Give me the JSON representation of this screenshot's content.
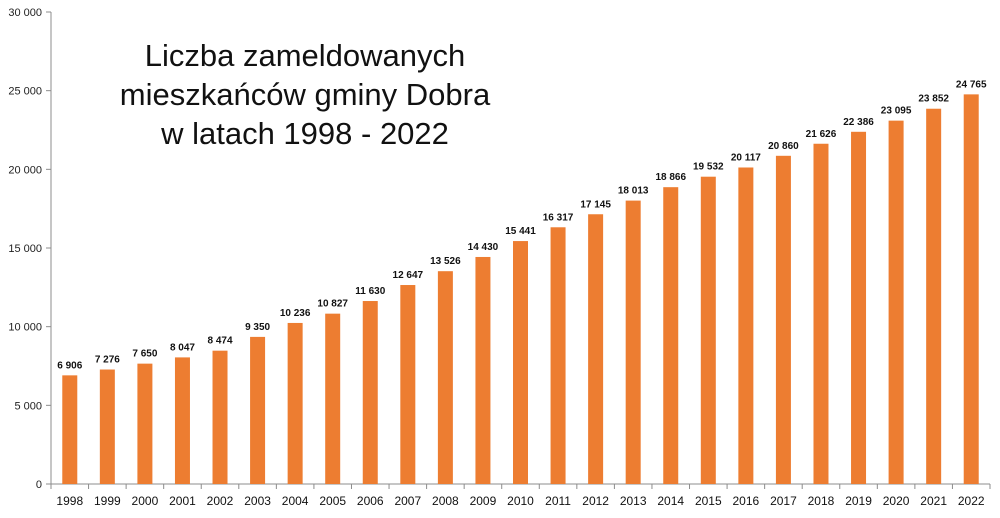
{
  "chart_data": {
    "type": "bar",
    "title_lines": [
      "Liczba zameldowanych",
      "mieszkańców gminy Dobra",
      "w latach 1998 - 2022"
    ],
    "categories": [
      "1998",
      "1999",
      "2000",
      "2001",
      "2002",
      "2003",
      "2004",
      "2005",
      "2006",
      "2007",
      "2008",
      "2009",
      "2010",
      "2011",
      "2012",
      "2013",
      "2014",
      "2015",
      "2016",
      "2017",
      "2018",
      "2019",
      "2020",
      "2021",
      "2022"
    ],
    "values": [
      6906,
      7276,
      7650,
      8047,
      8474,
      9350,
      10236,
      10827,
      11630,
      12647,
      13526,
      14430,
      15441,
      16317,
      17145,
      18013,
      18866,
      19532,
      20117,
      20860,
      21626,
      22386,
      23095,
      23852,
      24765
    ],
    "value_labels": [
      "6 906",
      "7 276",
      "7 650",
      "8 047",
      "8 474",
      "9 350",
      "10 236",
      "10 827",
      "11 630",
      "12 647",
      "13 526",
      "14 430",
      "15 441",
      "16 317",
      "17 145",
      "18 013",
      "18 866",
      "19 532",
      "20 117",
      "20 860",
      "21 626",
      "22 386",
      "23 095",
      "23 852",
      "24 765"
    ],
    "yticks": [
      0,
      5000,
      10000,
      15000,
      20000,
      25000,
      30000
    ],
    "ytick_labels": [
      "0",
      "5 000",
      "10 000",
      "15 000",
      "20 000",
      "25 000",
      "30 000"
    ],
    "ylim": [
      0,
      30000
    ],
    "xlabel": "",
    "ylabel": "",
    "grid": false,
    "legend": "none",
    "bar_color": "#ED7D31"
  }
}
